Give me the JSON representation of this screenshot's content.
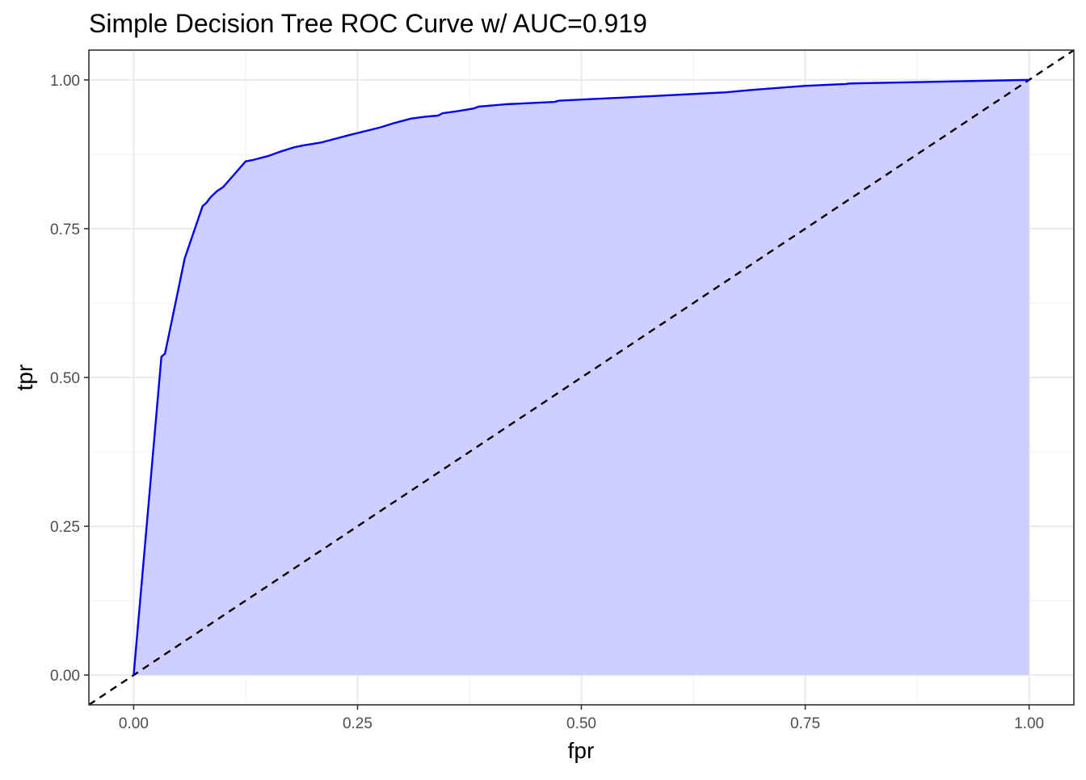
{
  "chart_data": {
    "type": "area",
    "title": "Simple Decision Tree ROC Curve w/ AUC=0.919",
    "xlabel": "fpr",
    "ylabel": "tpr",
    "xlim": [
      -0.05,
      1.05
    ],
    "ylim": [
      -0.05,
      1.05
    ],
    "x_ticks": [
      0.0,
      0.25,
      0.5,
      0.75,
      1.0
    ],
    "x_tick_labels": [
      "0.00",
      "0.25",
      "0.50",
      "0.75",
      "1.00"
    ],
    "y_ticks": [
      0.0,
      0.25,
      0.5,
      0.75,
      1.0
    ],
    "y_tick_labels": [
      "0.00",
      "0.25",
      "0.50",
      "0.75",
      "1.00"
    ],
    "grid": true,
    "series": [
      {
        "color": "#0000ee",
        "fill": "#ccccff",
        "x": [
          0.0,
          0.031,
          0.035,
          0.057,
          0.077,
          0.081,
          0.086,
          0.093,
          0.1,
          0.125,
          0.132,
          0.15,
          0.165,
          0.18,
          0.19,
          0.21,
          0.24,
          0.275,
          0.29,
          0.31,
          0.325,
          0.34,
          0.345,
          0.36,
          0.38,
          0.385,
          0.415,
          0.47,
          0.475,
          0.57,
          0.66,
          0.69,
          0.75,
          0.795,
          0.8,
          1.0
        ],
        "y": [
          0.0,
          0.535,
          0.54,
          0.7,
          0.788,
          0.793,
          0.803,
          0.813,
          0.82,
          0.863,
          0.865,
          0.872,
          0.88,
          0.887,
          0.89,
          0.895,
          0.907,
          0.92,
          0.927,
          0.935,
          0.938,
          0.94,
          0.944,
          0.947,
          0.952,
          0.955,
          0.959,
          0.963,
          0.965,
          0.972,
          0.979,
          0.983,
          0.99,
          0.993,
          0.994,
          1.0
        ]
      }
    ],
    "reference_line": {
      "slope": 1,
      "intercept": 0,
      "color": "#000000",
      "style": "dashed"
    }
  }
}
